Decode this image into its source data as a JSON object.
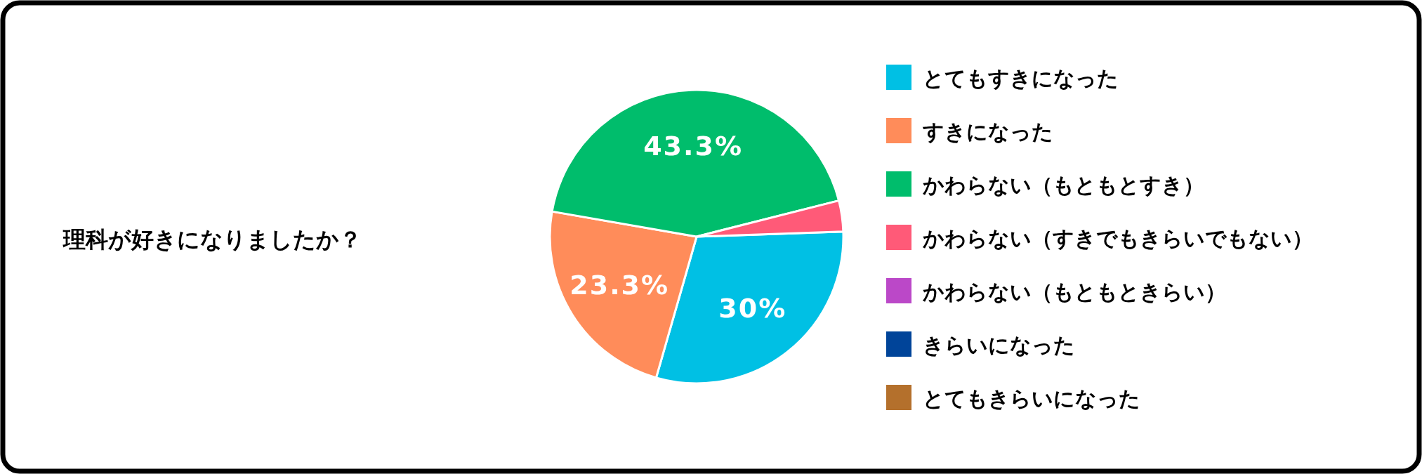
{
  "chart_data": {
    "type": "pie",
    "title": "理科が好きになりましたか？",
    "categories": [
      "とてもすきになった",
      "すきになった",
      "かわらない（もともとすき）",
      "かわらない（すきでもきらいでもない）",
      "かわらない（もともときらい）",
      "きらいになった",
      "とてもきらいになった"
    ],
    "values": [
      30,
      23.3,
      43.3,
      3.4,
      0,
      0,
      0
    ],
    "value_labels": [
      "30%",
      "23.3%",
      "43.3%",
      null,
      null,
      null,
      null
    ],
    "colors": [
      "#00c0e4",
      "#ff8c5a",
      "#00bd6c",
      "#ff5a78",
      "#bb48c8",
      "#004499",
      "#b4702c"
    ],
    "legend": "right"
  }
}
